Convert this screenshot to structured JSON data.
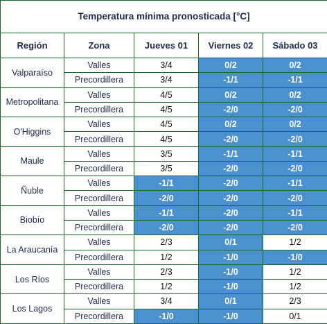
{
  "title": "Temperatura mínima pronosticada [°C]",
  "headers": [
    "Región",
    "Zona",
    "Jueves 01",
    "Viernes 02",
    "Sábado 03"
  ],
  "highlight_color": "#4b90cf",
  "border_color": "#1a6a2c",
  "regions": [
    {
      "name": "Valparaíso",
      "rows": [
        {
          "zone": "Valles",
          "values": [
            "3/4",
            "0/2",
            "0/2"
          ],
          "highlight": [
            false,
            true,
            true
          ]
        },
        {
          "zone": "Precordillera",
          "values": [
            "3/4",
            "-1/1",
            "-1/1"
          ],
          "highlight": [
            false,
            true,
            true
          ]
        }
      ]
    },
    {
      "name": "Metropolitana",
      "rows": [
        {
          "zone": "Valles",
          "values": [
            "4/5",
            "0/2",
            "0/2"
          ],
          "highlight": [
            false,
            true,
            true
          ]
        },
        {
          "zone": "Precordillera",
          "values": [
            "4/5",
            "-2/0",
            "-2/0"
          ],
          "highlight": [
            false,
            true,
            true
          ]
        }
      ]
    },
    {
      "name": "O'Higgins",
      "rows": [
        {
          "zone": "Valles",
          "values": [
            "4/5",
            "0/2",
            "0/2"
          ],
          "highlight": [
            false,
            true,
            true
          ]
        },
        {
          "zone": "Precordillera",
          "values": [
            "4/5",
            "-2/0",
            "-2/0"
          ],
          "highlight": [
            false,
            true,
            true
          ]
        }
      ]
    },
    {
      "name": "Maule",
      "rows": [
        {
          "zone": "Valles",
          "values": [
            "3/5",
            "-1/1",
            "-1/1"
          ],
          "highlight": [
            false,
            true,
            true
          ]
        },
        {
          "zone": "Precordillera",
          "values": [
            "3/5",
            "-2/0",
            "-2/0"
          ],
          "highlight": [
            false,
            true,
            true
          ]
        }
      ]
    },
    {
      "name": "Ñuble",
      "rows": [
        {
          "zone": "Valles",
          "values": [
            "-1/1",
            "-2/0",
            "-1/1"
          ],
          "highlight": [
            true,
            true,
            true
          ]
        },
        {
          "zone": "Precordillera",
          "values": [
            "-2/0",
            "-2/0",
            "-2/0"
          ],
          "highlight": [
            true,
            true,
            true
          ]
        }
      ]
    },
    {
      "name": "Biobío",
      "rows": [
        {
          "zone": "Valles",
          "values": [
            "-1/1",
            "-2/0",
            "-1/1"
          ],
          "highlight": [
            true,
            true,
            true
          ]
        },
        {
          "zone": "Precordillera",
          "values": [
            "-2/0",
            "-2/0",
            "-2/0"
          ],
          "highlight": [
            true,
            true,
            true
          ]
        }
      ]
    },
    {
      "name": "La Araucanía",
      "rows": [
        {
          "zone": "Valles",
          "values": [
            "2/3",
            "0/1",
            "1/2"
          ],
          "highlight": [
            false,
            true,
            false
          ]
        },
        {
          "zone": "Precordillera",
          "values": [
            "1/2",
            "-1/0",
            "-1/0"
          ],
          "highlight": [
            false,
            true,
            true
          ]
        }
      ]
    },
    {
      "name": "Los Ríos",
      "rows": [
        {
          "zone": "Valles",
          "values": [
            "2/3",
            "-1/0",
            "1/2"
          ],
          "highlight": [
            false,
            true,
            false
          ]
        },
        {
          "zone": "Precordillera",
          "values": [
            "1/2",
            "-1/0",
            "1/2"
          ],
          "highlight": [
            false,
            true,
            false
          ]
        }
      ]
    },
    {
      "name": "Los Lagos",
      "rows": [
        {
          "zone": "Valles",
          "values": [
            "3/4",
            "0/1",
            "2/3"
          ],
          "highlight": [
            false,
            true,
            false
          ]
        },
        {
          "zone": "Precordillera",
          "values": [
            "-1/0",
            "-1/0",
            "0/1"
          ],
          "highlight": [
            true,
            true,
            false
          ]
        }
      ]
    }
  ]
}
